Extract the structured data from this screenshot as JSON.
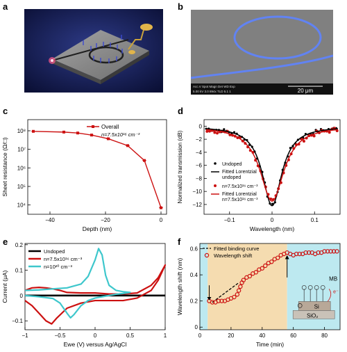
{
  "panels": {
    "a": {
      "label": "a"
    },
    "b": {
      "label": "b",
      "sem_info": "Acc.V  Spot Magn   Det  WD  Exp\n5.00 kV 3.0  894x   TLD  5.1   1",
      "scale_label": "20 μm"
    },
    "c": {
      "label": "c"
    },
    "d": {
      "label": "d"
    },
    "e": {
      "label": "e"
    },
    "f": {
      "label": "f"
    }
  },
  "colors": {
    "red": "#cc1111",
    "black": "#000000",
    "cyan": "#3ec7cc",
    "tan": "#f5dcb0",
    "lightblue": "#bde9f0"
  },
  "chart_data": [
    {
      "panel": "c",
      "type": "line",
      "xlabel": "Depth (nm)",
      "ylabel": "Sheet resistance (Ω/□)",
      "y_scale": "log",
      "xlim": [
        -48,
        2
      ],
      "ylim_exp": [
        3.5,
        8.6
      ],
      "x_ticks": [
        -40,
        -20,
        0
      ],
      "x_tick_labels": [
        "−40",
        "−20",
        "0"
      ],
      "y_ticks_exp": [
        4,
        5,
        6,
        7,
        8
      ],
      "y_tick_labels": [
        "10⁴",
        "10⁵",
        "10⁶",
        "10⁷",
        "10⁸"
      ],
      "series": [
        {
          "name": "Overall",
          "x": [
            -46,
            -35,
            -30,
            -25,
            -19,
            -12,
            -6,
            0
          ],
          "log10_y": [
            7.97,
            7.93,
            7.88,
            7.77,
            7.57,
            7.2,
            6.4,
            3.85
          ]
        }
      ],
      "legend": {
        "entries": [
          "Overall",
          "n=7.5x10¹⁶ cm⁻³"
        ]
      }
    },
    {
      "panel": "d",
      "type": "scatter",
      "xlabel": "Wavelength (nm)",
      "ylabel": "Normalized transmission (dB)",
      "xlim": [
        -0.16,
        0.16
      ],
      "ylim": [
        -13.5,
        1
      ],
      "x_ticks": [
        -0.1,
        0,
        0.1
      ],
      "x_tick_labels": [
        "−0.1",
        "0",
        "0.1"
      ],
      "y_ticks": [
        0,
        -2,
        -4,
        -6,
        -8,
        -10,
        -12
      ],
      "y_tick_labels": [
        "0",
        "−2",
        "−4",
        "−6",
        "−8",
        "−10",
        "−12"
      ],
      "lorentz": {
        "undoped": {
          "center": 0,
          "depth": 12.2,
          "hwhm": 0.028
        },
        "doped": {
          "center": 0,
          "depth": 11.5,
          "hwhm": 0.034
        }
      },
      "legend": {
        "entries": [
          "Undoped",
          "Fitted Lorentzial",
          "undoped",
          "n=7.5x10¹⁶ cm⁻³",
          "Fitted Lorentzial",
          "n=7.5x10¹⁶ cm⁻³"
        ]
      }
    },
    {
      "panel": "e",
      "type": "line",
      "xlabel": "Ewe (V) versus Ag/AgCl",
      "ylabel": "Current (μA)",
      "xlim": [
        -1,
        1
      ],
      "ylim": [
        -0.135,
        0.205
      ],
      "x_ticks": [
        -1,
        -0.5,
        0,
        0.5,
        1
      ],
      "x_tick_labels": [
        "−1",
        "−0.5",
        "0",
        "0.5",
        "1"
      ],
      "y_ticks": [
        -0.1,
        0,
        0.1,
        0.2
      ],
      "y_tick_labels": [
        "−0.1",
        "0",
        "0.1",
        "0.2"
      ],
      "series": [
        {
          "name": "Undoped",
          "color": "#000000",
          "x": [
            -1,
            -0.5,
            0,
            0.5,
            1
          ],
          "y": [
            0,
            0,
            0,
            0,
            0
          ]
        },
        {
          "name": "n=7.5x10¹⁶ cm⁻³",
          "color": "#cc1111",
          "x": [
            -1,
            -0.9,
            -0.8,
            -0.7,
            -0.6,
            -0.5,
            -0.4,
            -0.2,
            0,
            0.2,
            0.4,
            0.6,
            0.8,
            0.9,
            1,
            0.9,
            0.8,
            0.6,
            0.4,
            0.2,
            0,
            -0.2,
            -0.4,
            -0.55,
            -0.62,
            -0.7,
            -0.8,
            -0.9,
            -1
          ],
          "y": [
            0.02,
            0.03,
            0.032,
            0.03,
            0.026,
            0.02,
            0.012,
            0.01,
            0.01,
            0.006,
            0.006,
            0.01,
            0.04,
            0.07,
            0.12,
            0.06,
            0.02,
            -0.01,
            -0.02,
            -0.02,
            -0.02,
            -0.03,
            -0.05,
            -0.09,
            -0.112,
            -0.1,
            -0.07,
            -0.04,
            -0.02
          ]
        },
        {
          "name": "n=10²⁰ cm⁻³",
          "color": "#3ec7cc",
          "x": [
            -1,
            -0.8,
            -0.6,
            -0.4,
            -0.2,
            -0.1,
            0,
            0.05,
            0.1,
            0.15,
            0.2,
            0.3,
            0.4,
            0.5,
            0.4,
            0.3,
            0.2,
            0,
            -0.1,
            -0.2,
            -0.3,
            -0.35,
            -0.4,
            -0.5,
            -0.6,
            -0.8,
            -1
          ],
          "y": [
            0.02,
            0.022,
            0.026,
            0.03,
            0.045,
            0.075,
            0.14,
            0.185,
            0.16,
            0.08,
            0.04,
            0.02,
            0.015,
            0.012,
            0.008,
            0.005,
            0,
            -0.01,
            -0.02,
            -0.04,
            -0.075,
            -0.088,
            -0.07,
            -0.03,
            -0.012,
            -0.005,
            0.0
          ]
        }
      ],
      "legend": {
        "entries": [
          "Undoped",
          "n=7.5x10¹⁶ cm⁻³",
          "n=10²⁰ cm⁻³"
        ]
      }
    },
    {
      "panel": "f",
      "type": "scatter",
      "xlabel": "Time (min)",
      "ylabel": "Wavelength shift (nm)",
      "xlim": [
        0,
        90
      ],
      "ylim": [
        -0.02,
        0.64
      ],
      "x_ticks": [
        0,
        20,
        40,
        60,
        80
      ],
      "x_tick_labels": [
        "0",
        "20",
        "40",
        "60",
        "80"
      ],
      "y_ticks": [
        0,
        0.2,
        0.4,
        0.6
      ],
      "y_tick_labels": [
        "0",
        "0.2",
        "0.4",
        "0.6"
      ],
      "regions": [
        {
          "from": 0,
          "to": 5,
          "color": "#bde9f0"
        },
        {
          "from": 5,
          "to": 56,
          "color": "#f5dcb0"
        },
        {
          "from": 56,
          "to": 90,
          "color": "#bde9f0"
        }
      ],
      "series": [
        {
          "name": "Wavelength shift",
          "x": [
            6,
            8,
            10,
            12,
            14,
            16,
            18,
            20,
            22,
            24,
            25,
            26,
            27,
            28,
            30,
            32,
            34,
            36,
            38,
            40,
            42,
            44,
            46,
            48,
            50,
            52,
            54,
            56,
            58,
            60,
            62,
            64,
            66,
            68,
            70,
            72,
            74,
            76,
            78,
            80,
            82,
            84,
            86,
            88
          ],
          "y": [
            0.2,
            0.19,
            0.19,
            0.2,
            0.2,
            0.2,
            0.21,
            0.22,
            0.23,
            0.25,
            0.28,
            0.31,
            0.34,
            0.36,
            0.38,
            0.39,
            0.41,
            0.42,
            0.44,
            0.45,
            0.47,
            0.49,
            0.5,
            0.52,
            0.53,
            0.55,
            0.56,
            0.57,
            0.56,
            0.55,
            0.56,
            0.56,
            0.56,
            0.57,
            0.57,
            0.57,
            0.56,
            0.57,
            0.57,
            0.58,
            0.58,
            0.58,
            0.58,
            0.58
          ]
        },
        {
          "name": "Fitted binding curve",
          "x": [
            8,
            25
          ],
          "y": [
            0.19,
            0.34
          ]
        }
      ],
      "legend": {
        "entries": [
          "Fitted binding curve",
          "Wavelength shift"
        ]
      },
      "inset_labels": {
        "mb": "MB",
        "electron": "e⁻",
        "si": "Si",
        "sio2": "SiO₂"
      }
    }
  ]
}
